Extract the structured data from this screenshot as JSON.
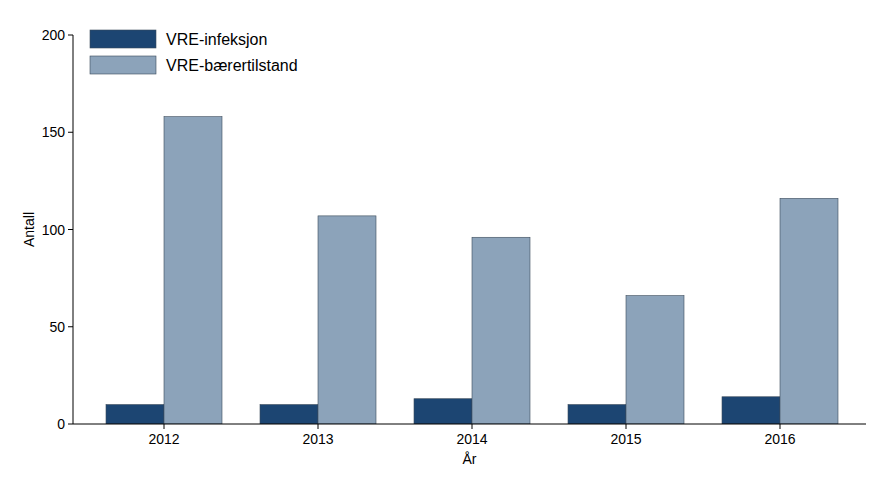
{
  "chart_data": {
    "type": "bar",
    "x_label": "År",
    "y_label": "Antall",
    "categories": [
      "2012",
      "2013",
      "2014",
      "2015",
      "2016"
    ],
    "series": [
      {
        "name": "VRE-infeksjon",
        "color": "#1c4572",
        "values": [
          10,
          10,
          13,
          10,
          14
        ]
      },
      {
        "name": "VRE-bærertilstand",
        "color": "#8ca3ba",
        "values": [
          158,
          107,
          96,
          66,
          116
        ]
      }
    ],
    "ylim": [
      0,
      200
    ],
    "yticks": [
      0,
      50,
      100,
      150,
      200
    ],
    "grid": false,
    "legend": "top-left"
  }
}
